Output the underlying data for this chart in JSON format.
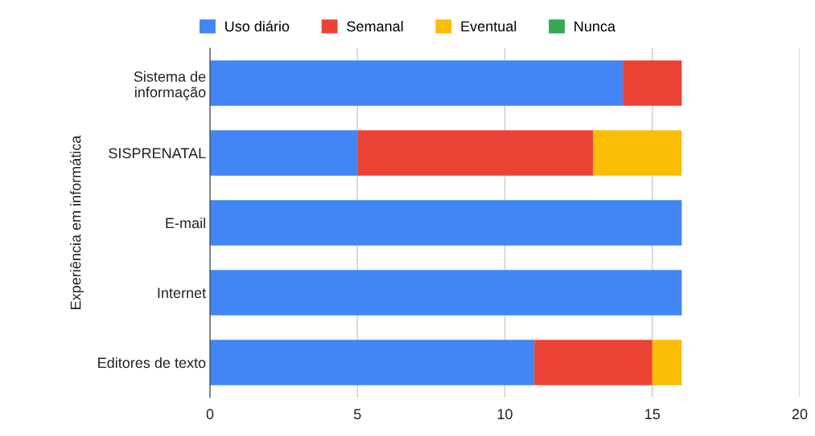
{
  "chart_data": {
    "type": "bar",
    "orientation": "horizontal",
    "stacked": true,
    "ylabel": "Experiência em informática",
    "categories": [
      "Sistema de\ninformação",
      "SISPRENATAL",
      "E-mail",
      "Internet",
      "Editores de texto"
    ],
    "series": [
      {
        "name": "Uso diário",
        "color": "#4285f4",
        "values": [
          14,
          5,
          16,
          16,
          11
        ]
      },
      {
        "name": "Semanal",
        "color": "#ea4335",
        "values": [
          2,
          8,
          0,
          0,
          4
        ]
      },
      {
        "name": "Eventual",
        "color": "#fbbc04",
        "values": [
          0,
          3,
          0,
          0,
          1
        ]
      },
      {
        "name": "Nunca",
        "color": "#34a853",
        "values": [
          0,
          0,
          0,
          0,
          0
        ]
      }
    ],
    "xlim": [
      0,
      20
    ],
    "xticks": [
      0,
      5,
      10,
      15,
      20
    ],
    "grid": "x",
    "legend": "top"
  }
}
